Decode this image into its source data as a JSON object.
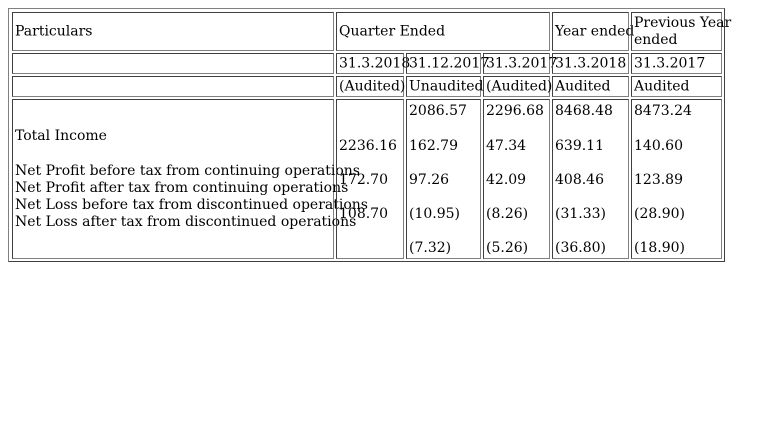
{
  "header": {
    "particulars": "Particulars",
    "quarter_ended": "Quarter Ended",
    "year_ended": "Year ended",
    "prev_year_line1": "Previous Year",
    "prev_year_line2": "ended"
  },
  "dates": [
    "31.3.2018",
    "31.12.2017",
    "31.3.2017",
    "31.3.2018",
    "31.3.2017"
  ],
  "audit_status": [
    "(Audited)",
    "Unaudited",
    "(Audited)",
    "Audited",
    "Audited"
  ],
  "particulars": {
    "total_income": "Total Income",
    "np_before_tax": "Net Profit before tax from continuing operations",
    "np_after_tax": "Net Profit after tax from continuing operations",
    "nl_before_tax": "Net Loss before tax from discontinued operations",
    "nl_after_tax": "Net Loss after tax from discontinued operations"
  },
  "columns": [
    [
      "",
      "2236.16",
      "172.70",
      "108.70",
      ""
    ],
    [
      "2086.57",
      "162.79",
      "97.26",
      "(10.95)",
      "(7.32)"
    ],
    [
      "2296.68",
      "47.34",
      "42.09",
      "(8.26)",
      "(5.26)"
    ],
    [
      "8468.48",
      "639.11",
      "408.46",
      "(31.33)",
      "(36.80)"
    ],
    [
      "8473.24",
      "140.60",
      "123.89",
      "(28.90)",
      "(18.90)"
    ]
  ]
}
